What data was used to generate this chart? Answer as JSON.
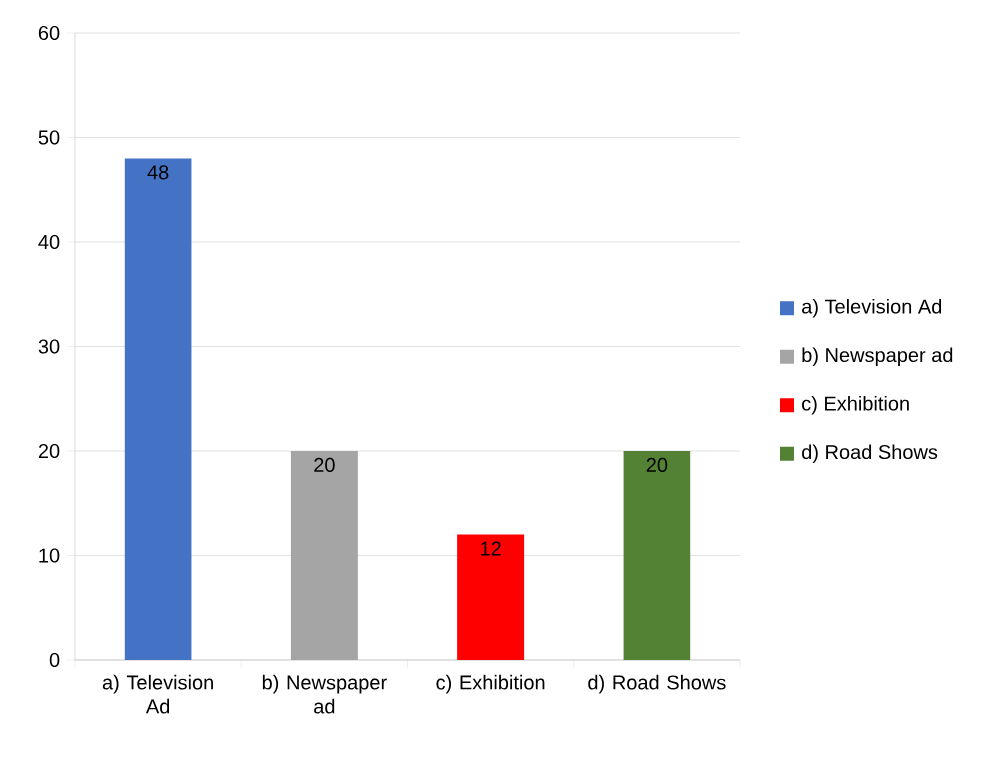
{
  "chart_data": {
    "type": "bar",
    "categories": [
      "a) Television Ad",
      "b) Newspaper ad",
      "c) Exhibition",
      "d) Road Shows"
    ],
    "series": [
      {
        "name": "a) Television Ad",
        "color": "#4472c4",
        "values": [
          48,
          null,
          null,
          null
        ]
      },
      {
        "name": "b) Newspaper ad",
        "color": "#a5a5a5",
        "values": [
          null,
          20,
          null,
          null
        ]
      },
      {
        "name": "c) Exhibition",
        "color": "#ff0000",
        "values": [
          null,
          null,
          12,
          null
        ]
      },
      {
        "name": "d) Road Shows",
        "color": "#548235",
        "values": [
          null,
          null,
          null,
          20
        ]
      }
    ],
    "ylim": [
      0,
      60
    ],
    "yticks": [
      0,
      10,
      20,
      30,
      40,
      50,
      60
    ],
    "grid": "y",
    "legend": "right",
    "data_labels": true
  }
}
